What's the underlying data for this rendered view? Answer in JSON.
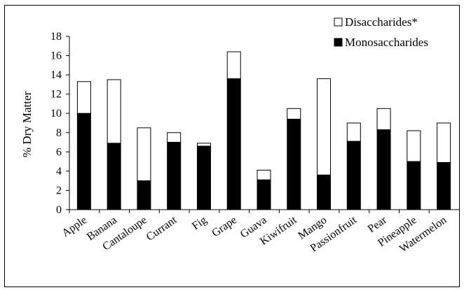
{
  "chart_data": {
    "type": "bar",
    "stacked": true,
    "title": "",
    "xlabel": "",
    "ylabel": "% Dry Matter",
    "ylim": [
      0,
      18
    ],
    "yticks": [
      0,
      2,
      4,
      6,
      8,
      10,
      12,
      14,
      16,
      18
    ],
    "grid": false,
    "legend_position": "top-right",
    "categories": [
      "Apple",
      "Banana",
      "Cantaloupe",
      "Currant",
      "Fig",
      "Grape",
      "Guava",
      "Kiwifruit",
      "Mango",
      "Passionfruit",
      "Pear",
      "Pineapple",
      "Watermelon"
    ],
    "series": [
      {
        "name": "Monosaccharides",
        "color": "#000000",
        "values": [
          10.0,
          6.9,
          3.0,
          7.0,
          6.6,
          13.6,
          3.1,
          9.4,
          3.6,
          7.1,
          8.3,
          5.0,
          4.9
        ]
      },
      {
        "name": "Disaccharides*",
        "color": "#ffffff",
        "values": [
          3.3,
          6.6,
          5.5,
          1.0,
          0.3,
          2.8,
          1.0,
          1.1,
          10.0,
          1.9,
          2.2,
          3.2,
          4.1
        ]
      }
    ],
    "legend": [
      {
        "label": "Disaccharides*",
        "swatch": "#ffffff"
      },
      {
        "label": "Monosaccharides",
        "swatch": "#000000"
      }
    ]
  }
}
